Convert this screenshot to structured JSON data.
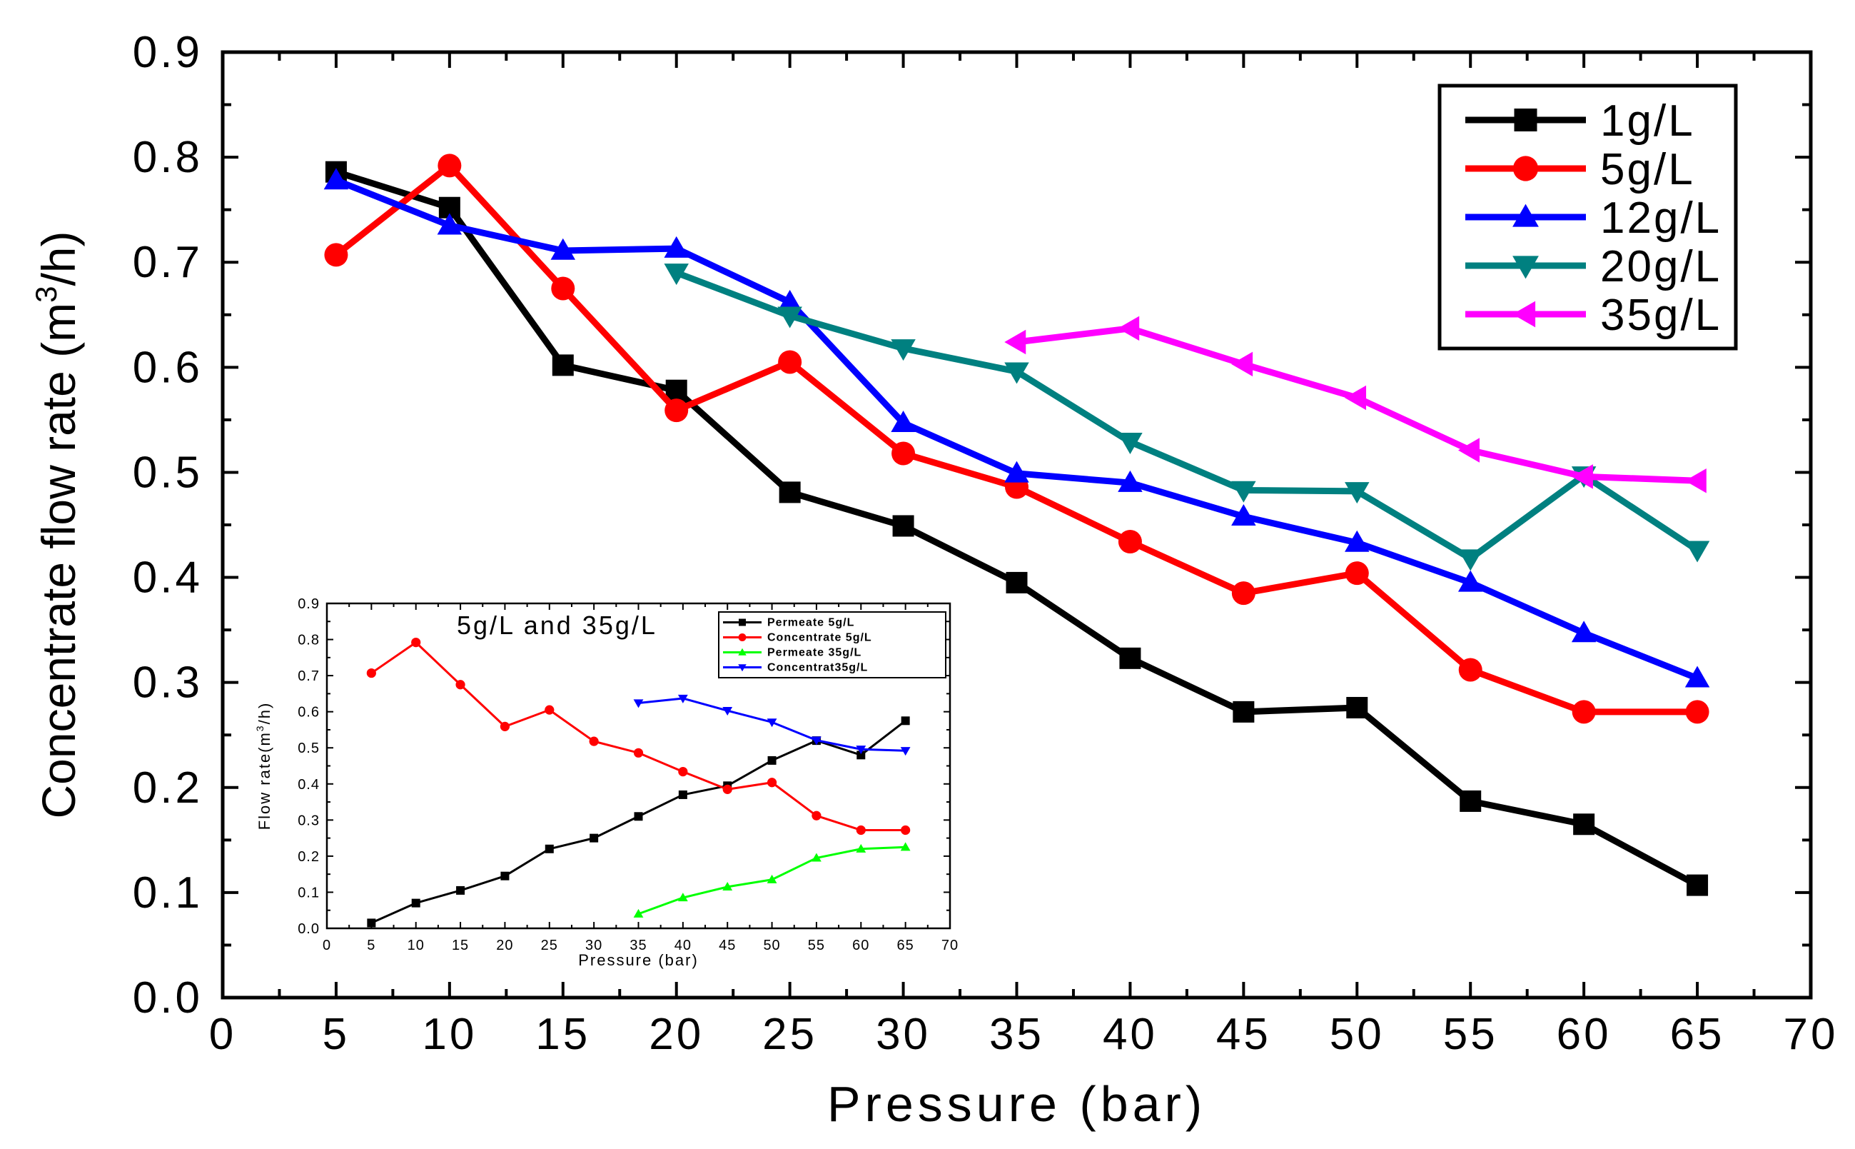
{
  "chart_data": [
    {
      "type": "line",
      "title": "",
      "xlabel": "Pressure (bar)",
      "ylabel_main": "Concentrate flow rate (m",
      "ylabel_sup": "3",
      "ylabel_tail": "/h)",
      "xlim": [
        0,
        70
      ],
      "ylim": [
        0.0,
        0.9
      ],
      "x_ticks": [
        "0",
        "5",
        "10",
        "15",
        "20",
        "25",
        "30",
        "35",
        "40",
        "45",
        "50",
        "55",
        "60",
        "65",
        "70"
      ],
      "y_ticks": [
        "0.0",
        "0.1",
        "0.2",
        "0.3",
        "0.4",
        "0.5",
        "0.6",
        "0.7",
        "0.8",
        "0.9"
      ],
      "legend_position": "top-right",
      "series": [
        {
          "name": "1g/L",
          "color": "#000000",
          "marker": "square",
          "x": [
            5,
            10,
            15,
            20,
            25,
            30,
            35,
            40,
            45,
            50,
            55,
            60,
            65
          ],
          "y": [
            0.786,
            0.752,
            0.602,
            0.578,
            0.481,
            0.449,
            0.395,
            0.323,
            0.272,
            0.276,
            0.187,
            0.165,
            0.107
          ]
        },
        {
          "name": "5g/L",
          "color": "#ff0000",
          "marker": "circle",
          "x": [
            5,
            10,
            15,
            20,
            25,
            30,
            35,
            40,
            45,
            50,
            55,
            60,
            65
          ],
          "y": [
            0.707,
            0.792,
            0.675,
            0.559,
            0.605,
            0.518,
            0.486,
            0.434,
            0.385,
            0.404,
            0.312,
            0.272,
            0.272
          ]
        },
        {
          "name": "12g/L",
          "color": "#0000ff",
          "marker": "triangle-up",
          "x": [
            5,
            10,
            15,
            20,
            25,
            30,
            35,
            40,
            45,
            50,
            55,
            60,
            65
          ],
          "y": [
            0.778,
            0.735,
            0.711,
            0.713,
            0.662,
            0.547,
            0.499,
            0.49,
            0.458,
            0.433,
            0.395,
            0.347,
            0.304
          ]
        },
        {
          "name": "20g/L",
          "color": "#008080",
          "marker": "triangle-down",
          "x": [
            20,
            25,
            30,
            35,
            40,
            45,
            50,
            55,
            60,
            65
          ],
          "y": [
            0.69,
            0.649,
            0.618,
            0.596,
            0.529,
            0.483,
            0.482,
            0.418,
            0.497,
            0.426
          ]
        },
        {
          "name": "35g/L",
          "color": "#ff00ff",
          "marker": "triangle-left",
          "x": [
            35,
            40,
            45,
            50,
            55,
            60,
            65
          ],
          "y": [
            0.624,
            0.637,
            0.603,
            0.571,
            0.521,
            0.496,
            0.492
          ]
        }
      ]
    },
    {
      "type": "line",
      "title": "5g/L and 35g/L",
      "xlabel": "Pressure (bar)",
      "ylabel_main": "Flow rate(m",
      "ylabel_sup": "3",
      "ylabel_tail": "/h)",
      "xlim": [
        0,
        70
      ],
      "ylim": [
        0.0,
        0.9
      ],
      "x_ticks": [
        "0",
        "5",
        "10",
        "15",
        "20",
        "25",
        "30",
        "35",
        "40",
        "45",
        "50",
        "55",
        "60",
        "65",
        "70"
      ],
      "y_ticks": [
        "0.0",
        "0.1",
        "0.2",
        "0.3",
        "0.4",
        "0.5",
        "0.6",
        "0.7",
        "0.8",
        "0.9"
      ],
      "legend_position": "top-right",
      "series": [
        {
          "name": "Permeate 5g/L",
          "color": "#000000",
          "marker": "square",
          "x": [
            5,
            10,
            15,
            20,
            25,
            30,
            35,
            40,
            45,
            50,
            55,
            60,
            65
          ],
          "y": [
            0.015,
            0.07,
            0.105,
            0.145,
            0.22,
            0.25,
            0.31,
            0.37,
            0.395,
            0.465,
            0.52,
            0.48,
            0.575
          ]
        },
        {
          "name": "Concentrate 5g/L",
          "color": "#ff0000",
          "marker": "circle",
          "x": [
            5,
            10,
            15,
            20,
            25,
            30,
            35,
            40,
            45,
            50,
            55,
            60,
            65
          ],
          "y": [
            0.707,
            0.792,
            0.675,
            0.559,
            0.605,
            0.518,
            0.486,
            0.434,
            0.385,
            0.404,
            0.312,
            0.272,
            0.272
          ]
        },
        {
          "name": "Permeate 35g/L",
          "color": "#00ff00",
          "marker": "triangle-up",
          "x": [
            35,
            40,
            45,
            50,
            55,
            60,
            65
          ],
          "y": [
            0.04,
            0.085,
            0.115,
            0.135,
            0.195,
            0.22,
            0.225
          ]
        },
        {
          "name": "Concentrat35g/L",
          "color": "#0000ff",
          "marker": "triangle-down",
          "x": [
            35,
            40,
            45,
            50,
            55,
            60,
            65
          ],
          "y": [
            0.624,
            0.637,
            0.603,
            0.571,
            0.521,
            0.496,
            0.492
          ]
        }
      ]
    }
  ]
}
